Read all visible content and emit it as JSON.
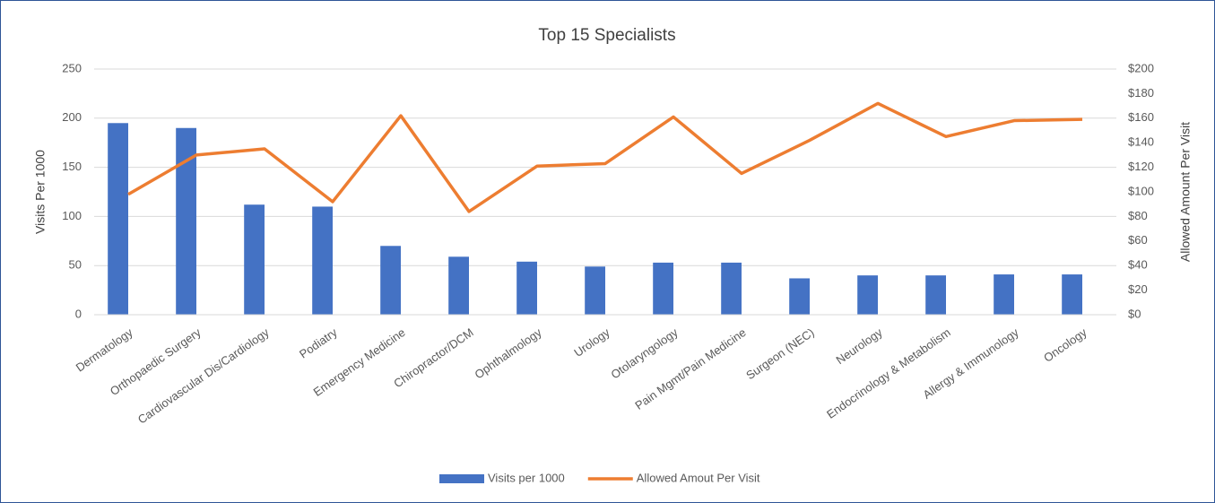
{
  "chart_data": {
    "type": "bar",
    "title": "Top 15 Specialists",
    "categories": [
      "Dermatology",
      "Orthopaedic Surgery",
      "Cardiovascular Dis/Cardiology",
      "Podiatry",
      "Emergency Medicine",
      "Chiropractor/DCM",
      "Ophthalmology",
      "Urology",
      "Otolaryngology",
      "Pain Mgmt/Pain Medicine",
      "Surgeon (NEC)",
      "Neurology",
      "Endocrinology & Metabolism",
      "Allergy & Immunology",
      "Oncology"
    ],
    "series": [
      {
        "name": "Visits per 1000",
        "type": "bar",
        "color": "#4472c4",
        "values": [
          195,
          190,
          112,
          110,
          70,
          59,
          54,
          49,
          53,
          53,
          37,
          40,
          40,
          41,
          41
        ]
      },
      {
        "name": "Allowed Amout Per Visit",
        "type": "line",
        "axis": "y2",
        "color": "#ed7d31",
        "values": [
          98,
          130,
          135,
          92,
          162,
          84,
          121,
          123,
          161,
          115,
          142,
          172,
          145,
          158,
          159
        ]
      }
    ],
    "ylabel": "Visits Per 1000",
    "y2label": "Allowed Amount Per Visit",
    "ylim": [
      0,
      250
    ],
    "yticks": [
      0,
      50,
      100,
      150,
      200,
      250
    ],
    "y2lim": [
      0,
      200
    ],
    "y2ticks": [
      {
        "value": 0,
        "label": "$0"
      },
      {
        "value": 20,
        "label": "$20"
      },
      {
        "value": 40,
        "label": "$40"
      },
      {
        "value": 60,
        "label": "$60"
      },
      {
        "value": 80,
        "label": "$80"
      },
      {
        "value": 100,
        "label": "$100"
      },
      {
        "value": 120,
        "label": "$120"
      },
      {
        "value": 140,
        "label": "$140"
      },
      {
        "value": 160,
        "label": "$160"
      },
      {
        "value": 180,
        "label": "$180"
      },
      {
        "value": 200,
        "label": "$200"
      }
    ],
    "grid": true,
    "legend": "bottom"
  }
}
